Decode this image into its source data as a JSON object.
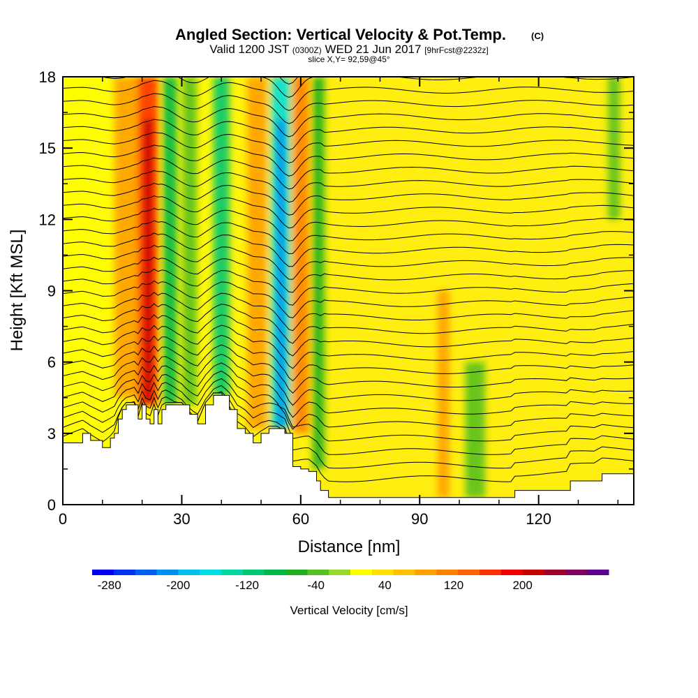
{
  "header": {
    "title": "Angled Section: Vertical Velocity & Pot.Temp.",
    "title_suffix": "(C)",
    "valid_prefix": "Valid 1200 JST",
    "valid_zulu": "(0300Z)",
    "valid_date": "WED 21 Jun 2017",
    "forecast": "[9hrFcst@2232z]",
    "slice": "slice X,Y= 92,59@45°"
  },
  "chart_data": {
    "type": "heatmap",
    "xlabel": "Distance [nm]",
    "ylabel": "Height [Kft MSL]",
    "xlim": [
      0,
      144
    ],
    "ylim": [
      0,
      18
    ],
    "x_ticks": [
      {
        "value": 0,
        "label": "0"
      },
      {
        "value": 30,
        "label": "30"
      },
      {
        "value": 60,
        "label": "60"
      },
      {
        "value": 90,
        "label": "90"
      },
      {
        "value": 120,
        "label": "120"
      }
    ],
    "y_ticks": [
      {
        "value": 0,
        "label": "0"
      },
      {
        "value": 3,
        "label": "3"
      },
      {
        "value": 6,
        "label": "6"
      },
      {
        "value": 9,
        "label": "9"
      },
      {
        "value": 12,
        "label": "12"
      },
      {
        "value": 15,
        "label": "15"
      },
      {
        "value": 18,
        "label": "18"
      }
    ],
    "terrain": [
      [
        0,
        2.6
      ],
      [
        5,
        3.0
      ],
      [
        7,
        2.7
      ],
      [
        10,
        2.4
      ],
      [
        12,
        2.8
      ],
      [
        13,
        3.0
      ],
      [
        14,
        3.6
      ],
      [
        15,
        4.0
      ],
      [
        16,
        4.2
      ],
      [
        18,
        4.2
      ],
      [
        19,
        3.6
      ],
      [
        20,
        4.2
      ],
      [
        21,
        3.6
      ],
      [
        22,
        3.4
      ],
      [
        23,
        4.0
      ],
      [
        24,
        3.4
      ],
      [
        25,
        4.0
      ],
      [
        26,
        4.2
      ],
      [
        30,
        4.2
      ],
      [
        32,
        3.8
      ],
      [
        34,
        3.4
      ],
      [
        36,
        4.2
      ],
      [
        38,
        4.6
      ],
      [
        40,
        4.6
      ],
      [
        42,
        4.0
      ],
      [
        44,
        3.2
      ],
      [
        46,
        3.0
      ],
      [
        48,
        2.6
      ],
      [
        50,
        3.0
      ],
      [
        52,
        3.2
      ],
      [
        54,
        3.2
      ],
      [
        56,
        3.0
      ],
      [
        58,
        1.6
      ],
      [
        60,
        1.5
      ],
      [
        62,
        1.4
      ],
      [
        64,
        1.0
      ],
      [
        65,
        0.6
      ],
      [
        67,
        0.3
      ],
      [
        75,
        0.3
      ],
      [
        85,
        0.3
      ],
      [
        100,
        0.3
      ],
      [
        113,
        0.3
      ],
      [
        114,
        0.6
      ],
      [
        120,
        0.6
      ],
      [
        127,
        0.6
      ],
      [
        128,
        1.0
      ],
      [
        134,
        1.0
      ],
      [
        136,
        1.3
      ],
      [
        144,
        1.3
      ]
    ],
    "velocity_bands": [
      {
        "x": 16.5,
        "half_width": 3.5,
        "value": 90,
        "y_range": [
          4.5,
          18
        ]
      },
      {
        "x": 21.5,
        "half_width": 2.5,
        "value": 170,
        "y_range": [
          4.2,
          18
        ]
      },
      {
        "x": 27.0,
        "half_width": 1.8,
        "value": -100,
        "y_range": [
          4.2,
          18
        ]
      },
      {
        "x": 32.0,
        "half_width": 1.8,
        "value": -40,
        "y_range": [
          4.2,
          18
        ]
      },
      {
        "x": 40.0,
        "half_width": 2.0,
        "value": -110,
        "y_range": [
          4.6,
          18
        ]
      },
      {
        "x": 49.0,
        "half_width": 2.5,
        "value": 90,
        "y_range": [
          3.2,
          18
        ]
      },
      {
        "x": 55.0,
        "half_width": 2.5,
        "value": -170,
        "y_range": [
          3.2,
          18
        ]
      },
      {
        "x": 60.0,
        "half_width": 2.0,
        "value": 100,
        "y_range": [
          3.0,
          18
        ]
      },
      {
        "x": 64.5,
        "half_width": 1.5,
        "value": -70,
        "y_range": [
          1.5,
          18
        ]
      },
      {
        "x": 96.0,
        "half_width": 1.5,
        "value": 80,
        "y_range": [
          0.3,
          9
        ]
      },
      {
        "x": 104.0,
        "half_width": 2.5,
        "value": -30,
        "y_range": [
          0.3,
          6
        ]
      },
      {
        "x": 139.0,
        "half_width": 1.5,
        "value": -30,
        "y_range": [
          12,
          18
        ]
      }
    ],
    "colorbar": {
      "label": "Vertical Velocity [cm/s]",
      "tick_labels": [
        "-280",
        "-200",
        "-120",
        "-40",
        "40",
        "120",
        "200"
      ],
      "colors": [
        "#0000f0",
        "#0030f0",
        "#0060f0",
        "#0090f0",
        "#00c0f0",
        "#00e0e0",
        "#00d8a0",
        "#00c870",
        "#00b848",
        "#20b020",
        "#58c020",
        "#98d828",
        "#ffff00",
        "#ffe000",
        "#ffc000",
        "#ffa000",
        "#ff8000",
        "#ff6000",
        "#ff3000",
        "#f00000",
        "#c80000",
        "#a00030",
        "#800060",
        "#600090"
      ]
    }
  }
}
